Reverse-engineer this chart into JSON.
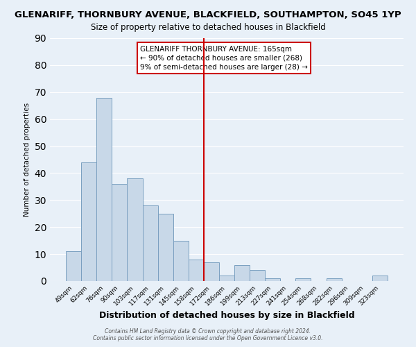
{
  "title": "GLENARIFF, THORNBURY AVENUE, BLACKFIELD, SOUTHAMPTON, SO45 1YP",
  "subtitle": "Size of property relative to detached houses in Blackfield",
  "xlabel": "Distribution of detached houses by size in Blackfield",
  "ylabel": "Number of detached properties",
  "bar_labels": [
    "49sqm",
    "62sqm",
    "76sqm",
    "90sqm",
    "103sqm",
    "117sqm",
    "131sqm",
    "145sqm",
    "158sqm",
    "172sqm",
    "186sqm",
    "199sqm",
    "213sqm",
    "227sqm",
    "241sqm",
    "254sqm",
    "268sqm",
    "282sqm",
    "296sqm",
    "309sqm",
    "323sqm"
  ],
  "bar_heights": [
    11,
    44,
    68,
    36,
    38,
    28,
    25,
    15,
    8,
    7,
    2,
    6,
    4,
    1,
    0,
    1,
    0,
    1,
    0,
    0,
    2
  ],
  "bar_color": "#c8d8e8",
  "bar_edge_color": "#7a9fc0",
  "vline_x": 8.5,
  "vline_color": "#cc0000",
  "annotation_title": "GLENARIFF THORNBURY AVENUE: 165sqm",
  "annotation_line1": "← 90% of detached houses are smaller (268)",
  "annotation_line2": "9% of semi-detached houses are larger (28) →",
  "annotation_box_edge_color": "#cc0000",
  "ylim": [
    0,
    90
  ],
  "yticks": [
    0,
    10,
    20,
    30,
    40,
    50,
    60,
    70,
    80,
    90
  ],
  "footer1": "Contains HM Land Registry data © Crown copyright and database right 2024.",
  "footer2": "Contains public sector information licensed under the Open Government Licence v3.0.",
  "background_color": "#e8f0f8",
  "grid_color": "#ffffff",
  "title_fontsize": 9.5,
  "subtitle_fontsize": 8.5,
  "xlabel_fontsize": 9,
  "ylabel_fontsize": 7.5,
  "tick_fontsize": 6.5,
  "annot_fontsize": 7.5,
  "footer_fontsize": 5.5
}
